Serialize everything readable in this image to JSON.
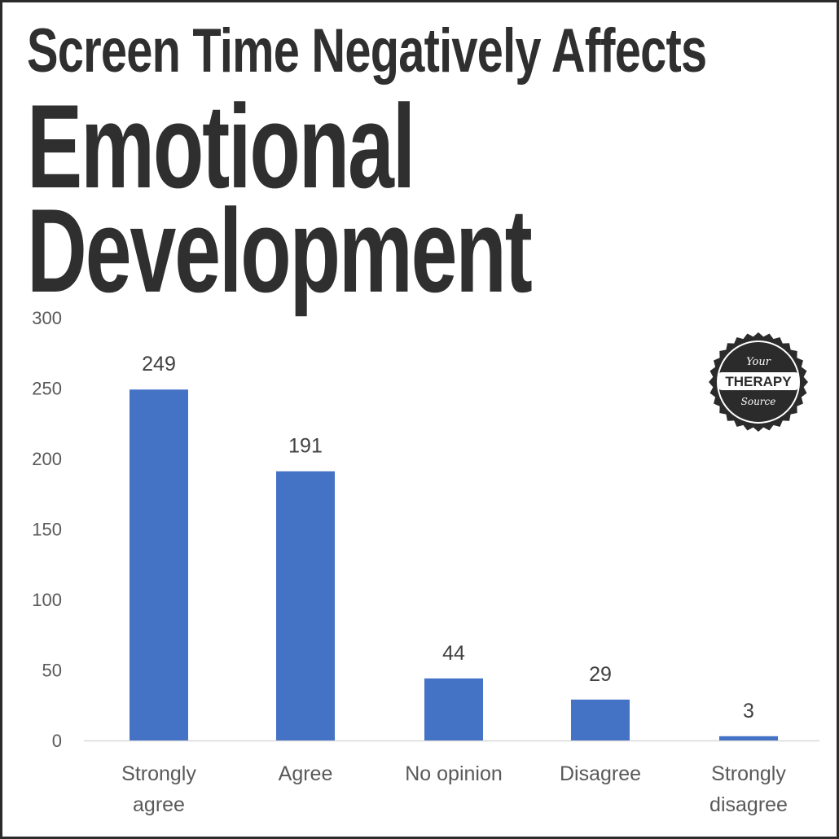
{
  "title": {
    "line1": "Screen Time Negatively Affects",
    "line2": "Emotional",
    "line3": "Development"
  },
  "logo": {
    "top": "Your",
    "middle": "THERAPY",
    "bottom": "Source"
  },
  "colors": {
    "bar": "#4472c4",
    "title": "#2f2f2f",
    "axis_text": "#595959"
  },
  "chart_data": {
    "type": "bar",
    "categories": [
      [
        "Strongly",
        "agree"
      ],
      [
        "Agree"
      ],
      [
        "No opinion"
      ],
      [
        "Disagree"
      ],
      [
        "Strongly",
        "disagree"
      ]
    ],
    "values": [
      249,
      191,
      44,
      29,
      3
    ],
    "data_labels": [
      "249",
      "191",
      "44",
      "29",
      "3"
    ],
    "y_ticks": [
      "0",
      "50",
      "100",
      "150",
      "200",
      "250",
      "300"
    ],
    "ylim": [
      0,
      300
    ],
    "grid": false,
    "legend": "none"
  }
}
